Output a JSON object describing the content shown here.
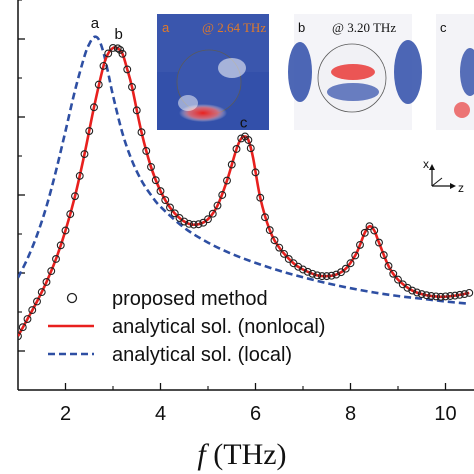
{
  "chart_data": {
    "type": "line",
    "title": "",
    "xlabel": {
      "italic": "f",
      "rest": " (THz)"
    },
    "ylabel": "",
    "xlim": [
      1.0,
      10.6
    ],
    "ylim": [
      0,
      1
    ],
    "x_ticks": [
      2,
      4,
      6,
      8,
      10
    ],
    "x_tick_labels": [
      "2",
      "4",
      "6",
      "8",
      "10"
    ],
    "y_ticks": [
      0.1,
      0.3,
      0.5,
      0.7,
      0.9
    ],
    "y_tick_labels": [
      "",
      "",
      "",
      "",
      ""
    ],
    "grid": false,
    "legend_position": "bottom-left",
    "series": [
      {
        "name": "proposed method",
        "style": "circles",
        "color": "#222222",
        "x": [
          1.0,
          1.1,
          1.2,
          1.3,
          1.4,
          1.5,
          1.6,
          1.7,
          1.8,
          1.9,
          2.0,
          2.1,
          2.2,
          2.3,
          2.4,
          2.5,
          2.6,
          2.7,
          2.8,
          2.9,
          3.0,
          3.1,
          3.15,
          3.2,
          3.3,
          3.4,
          3.5,
          3.6,
          3.7,
          3.8,
          3.9,
          4.0,
          4.1,
          4.2,
          4.3,
          4.4,
          4.5,
          4.6,
          4.7,
          4.8,
          4.9,
          5.0,
          5.1,
          5.2,
          5.3,
          5.4,
          5.5,
          5.6,
          5.7,
          5.78,
          5.85,
          5.9,
          6.0,
          6.1,
          6.2,
          6.3,
          6.4,
          6.5,
          6.6,
          6.7,
          6.8,
          6.9,
          7.0,
          7.1,
          7.2,
          7.3,
          7.4,
          7.5,
          7.6,
          7.7,
          7.8,
          7.9,
          8.0,
          8.1,
          8.2,
          8.3,
          8.4,
          8.5,
          8.6,
          8.7,
          8.8,
          8.9,
          9.0,
          9.1,
          9.2,
          9.3,
          9.4,
          9.5,
          9.6,
          9.7,
          9.8,
          9.9,
          10.0,
          10.1,
          10.2,
          10.3,
          10.4,
          10.5
        ],
        "y": [
          0.138,
          0.161,
          0.182,
          0.205,
          0.227,
          0.251,
          0.277,
          0.305,
          0.336,
          0.371,
          0.409,
          0.451,
          0.497,
          0.549,
          0.605,
          0.664,
          0.725,
          0.783,
          0.831,
          0.863,
          0.877,
          0.876,
          0.872,
          0.862,
          0.822,
          0.777,
          0.717,
          0.661,
          0.613,
          0.572,
          0.538,
          0.51,
          0.487,
          0.468,
          0.453,
          0.441,
          0.432,
          0.426,
          0.424,
          0.425,
          0.429,
          0.438,
          0.452,
          0.473,
          0.5,
          0.537,
          0.578,
          0.618,
          0.645,
          0.65,
          0.641,
          0.62,
          0.558,
          0.493,
          0.443,
          0.41,
          0.384,
          0.365,
          0.349,
          0.336,
          0.325,
          0.316,
          0.309,
          0.303,
          0.298,
          0.294,
          0.292,
          0.292,
          0.293,
          0.296,
          0.302,
          0.311,
          0.325,
          0.345,
          0.372,
          0.403,
          0.42,
          0.409,
          0.378,
          0.346,
          0.318,
          0.298,
          0.283,
          0.271,
          0.262,
          0.255,
          0.25,
          0.246,
          0.243,
          0.241,
          0.24,
          0.239,
          0.24,
          0.241,
          0.242,
          0.244,
          0.246,
          0.249
        ]
      },
      {
        "name": "analytical sol. (nonlocal)",
        "style": "solid",
        "color": "#e8201e",
        "x": [
          1.0,
          1.2,
          1.4,
          1.6,
          1.8,
          2.0,
          2.2,
          2.4,
          2.6,
          2.8,
          2.9,
          3.0,
          3.1,
          3.2,
          3.3,
          3.4,
          3.6,
          3.8,
          4.0,
          4.2,
          4.4,
          4.6,
          4.8,
          5.0,
          5.2,
          5.4,
          5.6,
          5.7,
          5.78,
          5.85,
          5.95,
          6.1,
          6.3,
          6.5,
          6.8,
          7.0,
          7.3,
          7.5,
          7.7,
          7.9,
          8.1,
          8.2,
          8.3,
          8.4,
          8.5,
          8.6,
          8.8,
          9.0,
          9.3,
          9.6,
          9.9,
          10.2,
          10.5
        ],
        "y": [
          0.138,
          0.182,
          0.227,
          0.277,
          0.336,
          0.409,
          0.497,
          0.605,
          0.725,
          0.831,
          0.863,
          0.877,
          0.876,
          0.862,
          0.822,
          0.777,
          0.661,
          0.572,
          0.51,
          0.468,
          0.441,
          0.426,
          0.425,
          0.438,
          0.473,
          0.537,
          0.618,
          0.645,
          0.65,
          0.641,
          0.595,
          0.493,
          0.41,
          0.365,
          0.325,
          0.309,
          0.294,
          0.292,
          0.296,
          0.311,
          0.345,
          0.372,
          0.403,
          0.42,
          0.409,
          0.378,
          0.318,
          0.283,
          0.255,
          0.243,
          0.239,
          0.242,
          0.249
        ]
      },
      {
        "name": "analytical sol. (local)",
        "style": "dashed",
        "color": "#2e4fa3",
        "x": [
          1.0,
          1.2,
          1.4,
          1.6,
          1.8,
          2.0,
          2.2,
          2.4,
          2.5,
          2.6,
          2.7,
          2.8,
          2.9,
          3.0,
          3.2,
          3.4,
          3.6,
          3.8,
          4.0,
          4.5,
          5.0,
          5.5,
          6.0,
          6.5,
          7.0,
          7.5,
          8.0,
          8.5,
          9.0,
          9.5,
          10.0,
          10.5
        ],
        "y": [
          0.288,
          0.337,
          0.397,
          0.471,
          0.562,
          0.664,
          0.768,
          0.856,
          0.887,
          0.905,
          0.899,
          0.865,
          0.812,
          0.755,
          0.658,
          0.588,
          0.537,
          0.5,
          0.47,
          0.416,
          0.378,
          0.349,
          0.326,
          0.306,
          0.289,
          0.274,
          0.261,
          0.25,
          0.241,
          0.234,
          0.227,
          0.221
        ]
      }
    ],
    "peak_labels": [
      {
        "text": "a",
        "x": 2.62,
        "y": 0.905
      },
      {
        "text": "b",
        "x": 3.12,
        "y": 0.877
      },
      {
        "text": "c",
        "x": 5.75,
        "y": 0.65
      }
    ],
    "insets": [
      {
        "letter": "a",
        "freq": "@ 2.64 THz",
        "text_color": "#e07a2a"
      },
      {
        "letter": "b",
        "freq": "@ 3.20 THz",
        "text_color": "#111111"
      },
      {
        "letter": "c",
        "freq": "",
        "text_color": "#111111"
      }
    ],
    "axis_indicator": {
      "x": "x",
      "z": "z"
    }
  }
}
